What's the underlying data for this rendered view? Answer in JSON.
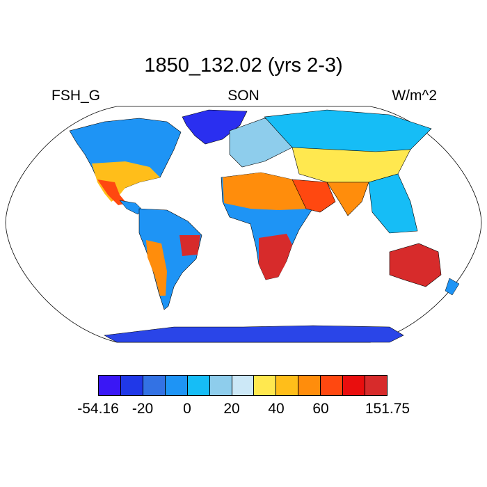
{
  "title": "1850_132.02 (yrs 2-3)",
  "left_label": "FSH_G",
  "center_label": "SON",
  "right_label": "W/m^2",
  "colorbar": {
    "colors": [
      "#3a17f5",
      "#2038e8",
      "#3372e4",
      "#1e94f5",
      "#16bdf6",
      "#8ecdec",
      "#cce8f7",
      "#ffe84f",
      "#ffbe1a",
      "#ff8d0c",
      "#ff4810",
      "#e90e0e",
      "#d72b2b"
    ],
    "tick_labels": [
      "-54.16",
      "-20",
      "0",
      "20",
      "40",
      "60",
      "151.75"
    ],
    "tick_values": [
      -54.16,
      -20,
      0,
      20,
      40,
      60,
      151.75
    ]
  },
  "map": {
    "projection": "Robinson",
    "ocean_color": "#ffffff",
    "regions": [
      {
        "name": "Greenland",
        "color": "#2a2ff0"
      },
      {
        "name": "Antarctica",
        "color": "#2a45e8"
      },
      {
        "name": "North America boreal",
        "color": "#1e94f5"
      },
      {
        "name": "Siberia",
        "color": "#16bdf6"
      },
      {
        "name": "Europe",
        "color": "#8ecdec"
      },
      {
        "name": "US South / Mexico",
        "color": "#ffbe1a"
      },
      {
        "name": "Sahara",
        "color": "#ff8d0c"
      },
      {
        "name": "Arabia",
        "color": "#ff4810"
      },
      {
        "name": "Central Asia",
        "color": "#ffe84f"
      },
      {
        "name": "Amazon",
        "color": "#1e94f5"
      },
      {
        "name": "Southern Africa",
        "color": "#d72b2b"
      },
      {
        "name": "Australia",
        "color": "#d72b2b"
      },
      {
        "name": "Southeast Asia",
        "color": "#16bdf6"
      },
      {
        "name": "Patagonia",
        "color": "#ff8d0c"
      },
      {
        "name": "East Brazil",
        "color": "#d72b2b"
      }
    ]
  }
}
